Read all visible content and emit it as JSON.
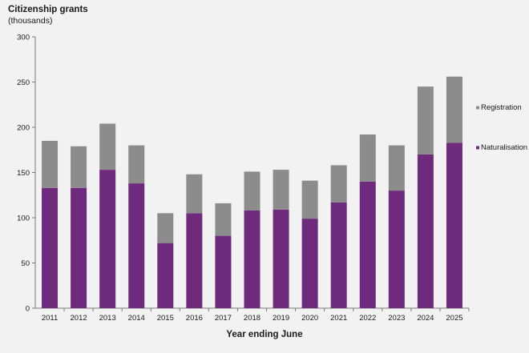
{
  "chart_data": {
    "type": "bar",
    "stacked": true,
    "title": "Citizenship grants",
    "subtitle": "(thousands)",
    "xlabel": "Year ending June",
    "ylabel": "",
    "ylim": [
      0,
      300
    ],
    "yticks": [
      0,
      50,
      100,
      150,
      200,
      250,
      300
    ],
    "grid": false,
    "legend_position": "right",
    "categories": [
      "2011",
      "2012",
      "2013",
      "2014",
      "2015",
      "2016",
      "2017",
      "2018",
      "2019",
      "2020",
      "2021",
      "2022",
      "2023",
      "2024",
      "2025"
    ],
    "series": [
      {
        "name": "Naturalisation",
        "color": "#6e2a7d",
        "values": [
          133,
          133,
          153,
          138,
          72,
          105,
          80,
          108,
          109,
          99,
          117,
          140,
          130,
          170,
          183
        ]
      },
      {
        "name": "Registration",
        "color": "#8c8c8c",
        "values": [
          52,
          46,
          51,
          42,
          33,
          43,
          36,
          43,
          44,
          42,
          41,
          52,
          50,
          75,
          73
        ]
      }
    ],
    "legend": [
      {
        "name": "Registration",
        "color": "#8c8c8c"
      },
      {
        "name": "Naturalisation",
        "color": "#6e2a7d"
      }
    ]
  }
}
